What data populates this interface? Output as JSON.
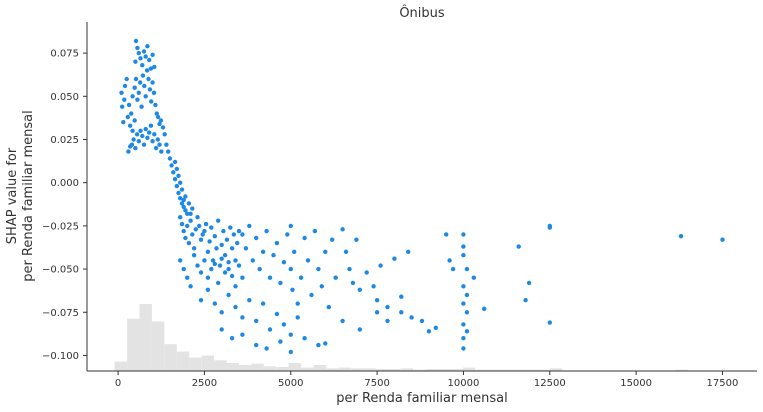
{
  "chart_data": {
    "type": "scatter",
    "title": "Ônibus",
    "xlabel": "per Renda familiar mensal",
    "ylabel_lines": [
      "SHAP value for",
      "per Renda familiar mensal"
    ],
    "xlim": [
      -900,
      18500
    ],
    "ylim": [
      -0.109,
      0.093
    ],
    "x_ticks": [
      0,
      2500,
      5000,
      7500,
      10000,
      12500,
      15000,
      17500
    ],
    "x_tick_labels": [
      "0",
      "2500",
      "5000",
      "7500",
      "10000",
      "12500",
      "15000",
      "17500"
    ],
    "y_ticks": [
      0.075,
      0.05,
      0.025,
      0.0,
      -0.025,
      -0.05,
      -0.075,
      -0.1
    ],
    "y_tick_labels": [
      "0.075",
      "0.050",
      "0.025",
      "0.000",
      "−0.025",
      "−0.050",
      "−0.075",
      "−0.100"
    ],
    "grid": false,
    "legend": "none",
    "colors": {
      "points": "#1e88e5",
      "histogram": "#e3e3e3",
      "axis": "#333333"
    },
    "histogram": {
      "bin_width": 360,
      "bin_starts": [
        -100,
        260,
        620,
        980,
        1340,
        1700,
        2060,
        2420,
        2780,
        3140,
        3500,
        3860,
        4220,
        4580,
        4940,
        5300,
        5660,
        6020,
        6380,
        6740,
        7100,
        7460,
        7820,
        8180,
        8540,
        8900,
        9260,
        9620,
        9980,
        10340,
        10700,
        11060,
        11420,
        11780,
        12140,
        12500,
        16140
      ],
      "relative_heights": [
        0.14,
        0.78,
        1.0,
        0.74,
        0.4,
        0.29,
        0.2,
        0.23,
        0.16,
        0.12,
        0.09,
        0.11,
        0.07,
        0.06,
        0.12,
        0.05,
        0.09,
        0.04,
        0.05,
        0.04,
        0.04,
        0.03,
        0.03,
        0.04,
        0.02,
        0.03,
        0.03,
        0.03,
        0.05,
        0.02,
        0.02,
        0.02,
        0.02,
        0.02,
        0.02,
        0.04,
        0.02
      ]
    },
    "series": [
      {
        "points": [
          [
            300,
            0.018
          ],
          [
            350,
            0.021
          ],
          [
            400,
            0.022
          ],
          [
            450,
            0.025
          ],
          [
            500,
            0.02
          ],
          [
            550,
            0.028
          ],
          [
            600,
            0.024
          ],
          [
            650,
            0.03
          ],
          [
            700,
            0.027
          ],
          [
            750,
            0.022
          ],
          [
            800,
            0.031
          ],
          [
            850,
            0.026
          ],
          [
            900,
            0.029
          ],
          [
            950,
            0.033
          ],
          [
            1000,
            0.024
          ],
          [
            1050,
            0.028
          ],
          [
            1100,
            0.02
          ],
          [
            1150,
            0.025
          ],
          [
            1200,
            0.022
          ],
          [
            1250,
            0.018
          ],
          [
            320,
            0.045
          ],
          [
            380,
            0.04
          ],
          [
            420,
            0.05
          ],
          [
            480,
            0.055
          ],
          [
            520,
            0.06
          ],
          [
            560,
            0.048
          ],
          [
            600,
            0.052
          ],
          [
            640,
            0.058
          ],
          [
            680,
            0.044
          ],
          [
            720,
            0.062
          ],
          [
            760,
            0.056
          ],
          [
            800,
            0.05
          ],
          [
            840,
            0.065
          ],
          [
            880,
            0.06
          ],
          [
            920,
            0.054
          ],
          [
            960,
            0.047
          ],
          [
            1000,
            0.058
          ],
          [
            1040,
            0.052
          ],
          [
            1080,
            0.045
          ],
          [
            1120,
            0.04
          ],
          [
            1160,
            0.038
          ],
          [
            1200,
            0.034
          ],
          [
            1240,
            0.036
          ],
          [
            500,
            0.07
          ],
          [
            520,
            0.082
          ],
          [
            560,
            0.078
          ],
          [
            600,
            0.075
          ],
          [
            650,
            0.072
          ],
          [
            700,
            0.068
          ],
          [
            750,
            0.076
          ],
          [
            800,
            0.073
          ],
          [
            850,
            0.079
          ],
          [
            900,
            0.071
          ],
          [
            950,
            0.066
          ],
          [
            1000,
            0.074
          ],
          [
            1050,
            0.067
          ],
          [
            100,
            0.052
          ],
          [
            120,
            0.044
          ],
          [
            150,
            0.035
          ],
          [
            180,
            0.048
          ],
          [
            200,
            0.056
          ],
          [
            250,
            0.06
          ],
          [
            280,
            0.038
          ],
          [
            350,
            0.033
          ],
          [
            420,
            0.03
          ],
          [
            480,
            0.036
          ],
          [
            1300,
            0.032
          ],
          [
            1350,
            0.028
          ],
          [
            1400,
            0.022
          ],
          [
            1450,
            0.018
          ],
          [
            1500,
            0.014
          ],
          [
            1550,
            0.01
          ],
          [
            1600,
            0.006
          ],
          [
            1650,
            0.002
          ],
          [
            1700,
            -0.002
          ],
          [
            1750,
            -0.006
          ],
          [
            1800,
            -0.009
          ],
          [
            1850,
            -0.012
          ],
          [
            1900,
            -0.014
          ],
          [
            1950,
            -0.016
          ],
          [
            2000,
            -0.018
          ],
          [
            1650,
            0.012
          ],
          [
            1700,
            0.008
          ],
          [
            1750,
            0.004
          ],
          [
            1800,
            0.0
          ],
          [
            1850,
            -0.004
          ],
          [
            1900,
            -0.01
          ],
          [
            1950,
            -0.008
          ],
          [
            2050,
            -0.012
          ],
          [
            2100,
            -0.018
          ],
          [
            2150,
            -0.015
          ],
          [
            1800,
            -0.02
          ],
          [
            1850,
            -0.024
          ],
          [
            1900,
            -0.028
          ],
          [
            1950,
            -0.032
          ],
          [
            2000,
            -0.025
          ],
          [
            2050,
            -0.035
          ],
          [
            2100,
            -0.022
          ],
          [
            2150,
            -0.03
          ],
          [
            2200,
            -0.038
          ],
          [
            2250,
            -0.027
          ],
          [
            2300,
            -0.02
          ],
          [
            2350,
            -0.025
          ],
          [
            2400,
            -0.033
          ],
          [
            2450,
            -0.03
          ],
          [
            2500,
            -0.028
          ],
          [
            2550,
            -0.024
          ],
          [
            2600,
            -0.04
          ],
          [
            2650,
            -0.034
          ],
          [
            2700,
            -0.026
          ],
          [
            2750,
            -0.045
          ],
          [
            2800,
            -0.031
          ],
          [
            2850,
            -0.038
          ],
          [
            2900,
            -0.022
          ],
          [
            2950,
            -0.048
          ],
          [
            3000,
            -0.036
          ],
          [
            3050,
            -0.028
          ],
          [
            3100,
            -0.042
          ],
          [
            3150,
            -0.033
          ],
          [
            3200,
            -0.05
          ],
          [
            3250,
            -0.026
          ],
          [
            3300,
            -0.038
          ],
          [
            3350,
            -0.03
          ],
          [
            3400,
            -0.045
          ],
          [
            3450,
            -0.035
          ],
          [
            3500,
            -0.028
          ],
          [
            2200,
            -0.042
          ],
          [
            2300,
            -0.048
          ],
          [
            2400,
            -0.052
          ],
          [
            2500,
            -0.045
          ],
          [
            2600,
            -0.055
          ],
          [
            2700,
            -0.05
          ],
          [
            2800,
            -0.047
          ],
          [
            2900,
            -0.058
          ],
          [
            3000,
            -0.044
          ],
          [
            3100,
            -0.052
          ],
          [
            3200,
            -0.046
          ],
          [
            3300,
            -0.054
          ],
          [
            3400,
            -0.06
          ],
          [
            3500,
            -0.048
          ],
          [
            3600,
            -0.055
          ],
          [
            1800,
            -0.045
          ],
          [
            1900,
            -0.05
          ],
          [
            2000,
            -0.055
          ],
          [
            2100,
            -0.06
          ],
          [
            2400,
            -0.068
          ],
          [
            2600,
            -0.062
          ],
          [
            2800,
            -0.07
          ],
          [
            3000,
            -0.075
          ],
          [
            3200,
            -0.065
          ],
          [
            3400,
            -0.072
          ],
          [
            3600,
            -0.078
          ],
          [
            3800,
            -0.068
          ],
          [
            4000,
            -0.08
          ],
          [
            4200,
            -0.07
          ],
          [
            4400,
            -0.085
          ],
          [
            4600,
            -0.076
          ],
          [
            4800,
            -0.082
          ],
          [
            5000,
            -0.088
          ],
          [
            5200,
            -0.078
          ],
          [
            5400,
            -0.09
          ],
          [
            3600,
            -0.03
          ],
          [
            3700,
            -0.038
          ],
          [
            3800,
            -0.025
          ],
          [
            3900,
            -0.045
          ],
          [
            4000,
            -0.032
          ],
          [
            4100,
            -0.05
          ],
          [
            4200,
            -0.04
          ],
          [
            4300,
            -0.028
          ],
          [
            4400,
            -0.055
          ],
          [
            4500,
            -0.042
          ],
          [
            4600,
            -0.035
          ],
          [
            4700,
            -0.058
          ],
          [
            4800,
            -0.046
          ],
          [
            4900,
            -0.03
          ],
          [
            5000,
            -0.025
          ],
          [
            5000,
            -0.05
          ],
          [
            5050,
            -0.062
          ],
          [
            5100,
            -0.04
          ],
          [
            5200,
            -0.07
          ],
          [
            5300,
            -0.055
          ],
          [
            5400,
            -0.032
          ],
          [
            5500,
            -0.045
          ],
          [
            5600,
            -0.065
          ],
          [
            5700,
            -0.028
          ],
          [
            5800,
            -0.05
          ],
          [
            5900,
            -0.06
          ],
          [
            6000,
            -0.04
          ],
          [
            6100,
            -0.072
          ],
          [
            6200,
            -0.033
          ],
          [
            6300,
            -0.055
          ],
          [
            3000,
            -0.085
          ],
          [
            3300,
            -0.09
          ],
          [
            3600,
            -0.088
          ],
          [
            4000,
            -0.094
          ],
          [
            4300,
            -0.096
          ],
          [
            4700,
            -0.092
          ],
          [
            5000,
            -0.098
          ],
          [
            5800,
            -0.094
          ],
          [
            6000,
            -0.093
          ],
          [
            6500,
            -0.027
          ],
          [
            6600,
            -0.04
          ],
          [
            6700,
            -0.05
          ],
          [
            6800,
            -0.058
          ],
          [
            6900,
            -0.033
          ],
          [
            7000,
            -0.062
          ],
          [
            7200,
            -0.052
          ],
          [
            7400,
            -0.06
          ],
          [
            7600,
            -0.048
          ],
          [
            7800,
            -0.072
          ],
          [
            7500,
            -0.068
          ],
          [
            7800,
            -0.08
          ],
          [
            8000,
            -0.044
          ],
          [
            8200,
            -0.066
          ],
          [
            8400,
            -0.04
          ],
          [
            6500,
            -0.08
          ],
          [
            7000,
            -0.085
          ],
          [
            7500,
            -0.075
          ],
          [
            8200,
            -0.075
          ],
          [
            8500,
            -0.078
          ],
          [
            8800,
            -0.08
          ],
          [
            9000,
            -0.086
          ],
          [
            9200,
            -0.084
          ],
          [
            9500,
            -0.03
          ],
          [
            9600,
            -0.045
          ],
          [
            9700,
            -0.05
          ],
          [
            10000,
            -0.03
          ],
          [
            10000,
            -0.037
          ],
          [
            10000,
            -0.042
          ],
          [
            10100,
            -0.05
          ],
          [
            10300,
            -0.055
          ],
          [
            10000,
            -0.06
          ],
          [
            10100,
            -0.065
          ],
          [
            10000,
            -0.07
          ],
          [
            10100,
            -0.075
          ],
          [
            10000,
            -0.082
          ],
          [
            10100,
            -0.086
          ],
          [
            10000,
            -0.09
          ],
          [
            10000,
            -0.096
          ],
          [
            10600,
            -0.073
          ],
          [
            11600,
            -0.037
          ],
          [
            11900,
            -0.058
          ],
          [
            11800,
            -0.068
          ],
          [
            12500,
            -0.025
          ],
          [
            12500,
            -0.026
          ],
          [
            12500,
            -0.081
          ],
          [
            16300,
            -0.031
          ],
          [
            17500,
            -0.033
          ]
        ]
      }
    ]
  }
}
